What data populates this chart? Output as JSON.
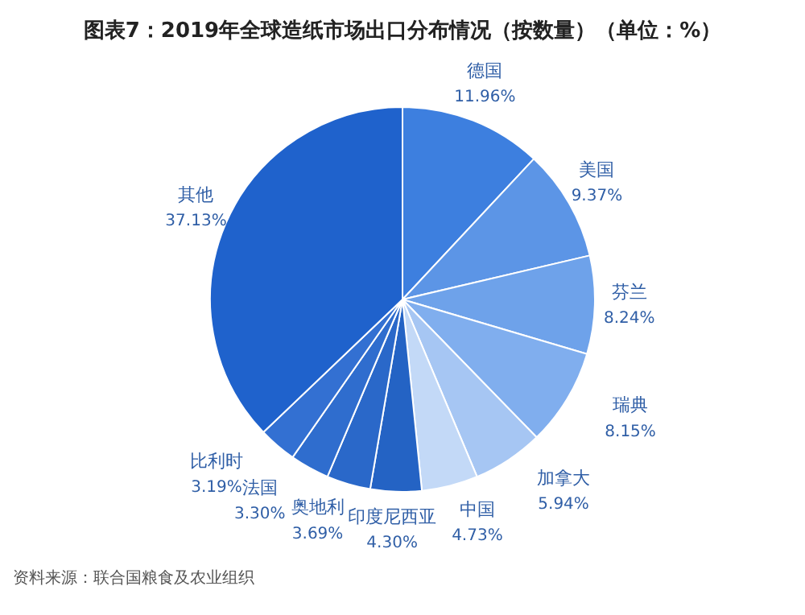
{
  "chart_data": {
    "type": "pie",
    "title": "图表7：2019年全球造纸市场出口分布情况（按数量）（单位：%）",
    "categories": [
      "德国",
      "美国",
      "芬兰",
      "瑞典",
      "加拿大",
      "中国",
      "印度尼西亚",
      "奥地利",
      "法国",
      "比利时",
      "其他"
    ],
    "values": [
      11.96,
      9.37,
      8.24,
      8.15,
      5.94,
      4.73,
      4.3,
      3.69,
      3.3,
      3.19,
      37.13
    ],
    "colors": [
      "#3d7fdf",
      "#5c95e6",
      "#6ea2ea",
      "#80aeee",
      "#a6c6f3",
      "#c3d9f7",
      "#2463c4",
      "#2a68c9",
      "#2f6dce",
      "#3370d2",
      "#1f62cc"
    ],
    "value_labels": [
      "11.96%",
      "9.37%",
      "8.24%",
      "8.15%",
      "5.94%",
      "4.73%",
      "4.30%",
      "3.69%",
      "3.30%",
      "3.19%",
      "37.13%"
    ],
    "legend": false,
    "annotations": [
      "资料来源：联合国粮食及农业组织"
    ]
  }
}
